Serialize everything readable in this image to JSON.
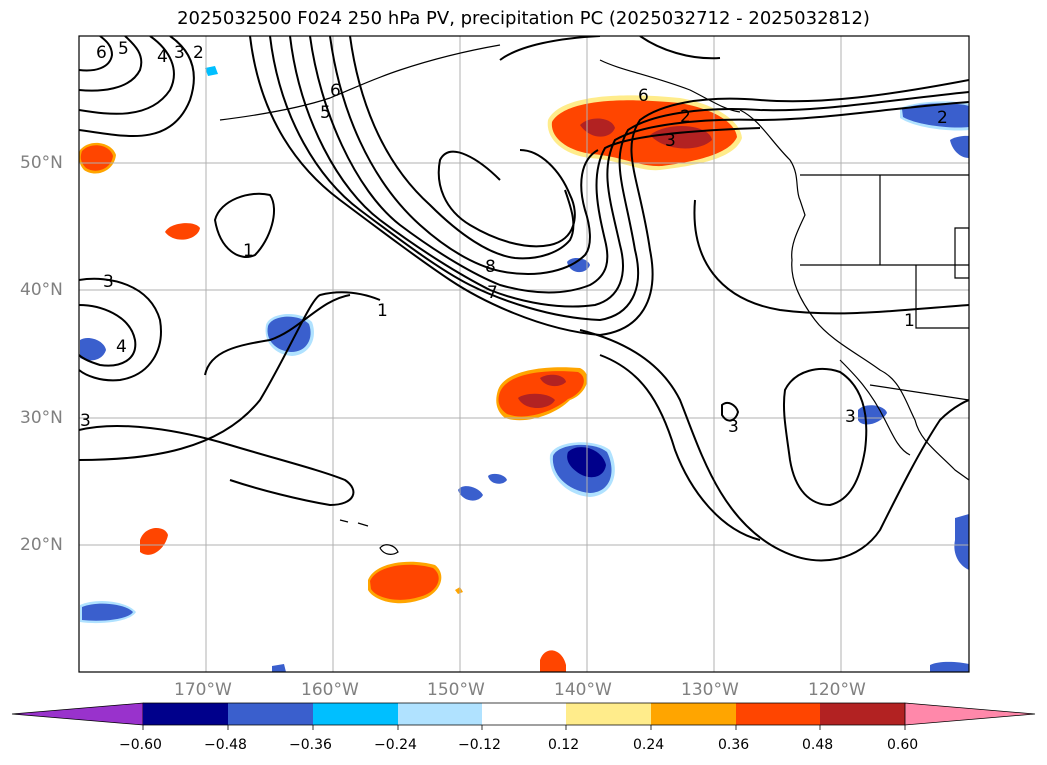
{
  "title": "2025032500 F024 250 hPa PV, precipitation PC (2025032712 - 2025032812)",
  "map": {
    "projection": "PlateCarree",
    "lon_range": [
      -180,
      -110
    ],
    "lat_range": [
      10,
      60
    ],
    "lat_labels": [
      "50°N",
      "40°N",
      "30°N",
      "20°N"
    ],
    "lon_labels": [
      "170°W",
      "160°W",
      "150°W",
      "140°W",
      "130°W",
      "120°W"
    ],
    "gridlines": true,
    "contour_color": "#000000",
    "pv_contour_labels": [
      "6",
      "5",
      "4",
      "3",
      "2",
      "5",
      "6",
      "1",
      "3",
      "4",
      "3",
      "8",
      "7",
      "1",
      "3",
      "6",
      "3",
      "2",
      "1",
      "3",
      "2"
    ]
  },
  "colorbar": {
    "ticks": [
      "−0.60",
      "−0.48",
      "−0.36",
      "−0.24",
      "−0.12",
      "0.12",
      "0.24",
      "0.36",
      "0.48",
      "0.60"
    ],
    "colors": [
      "#9932cc",
      "#00008b",
      "#3a5fcd",
      "#00bfff",
      "#b0e2ff",
      "#ffffff",
      "#ffec8b",
      "#ffa500",
      "#ff4500",
      "#b22222",
      "#ff88aa"
    ],
    "extend": "both"
  }
}
